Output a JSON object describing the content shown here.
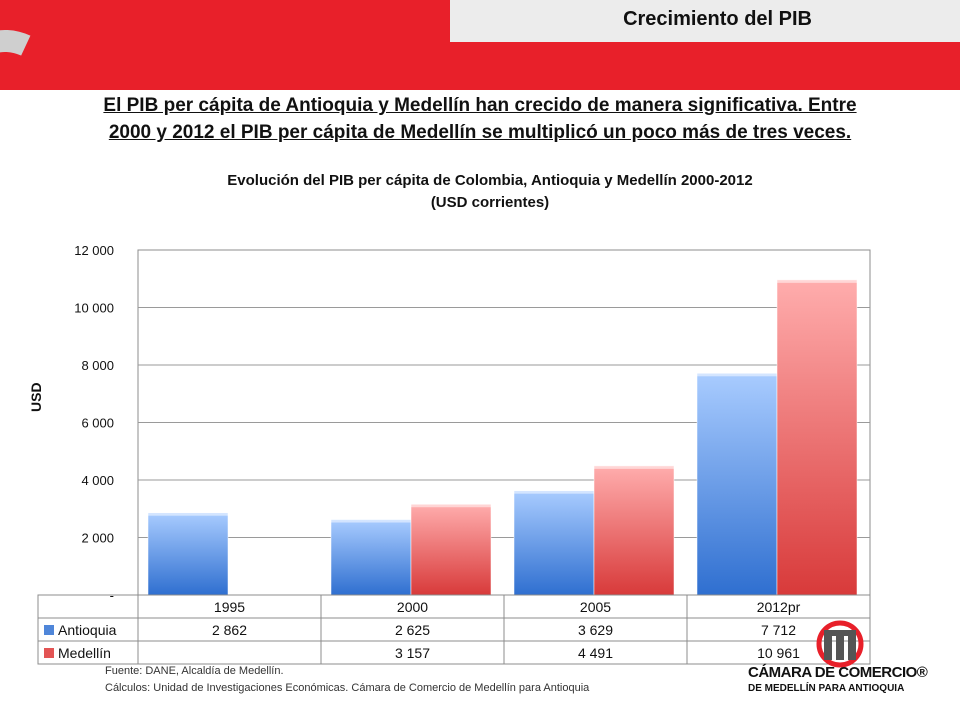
{
  "slide": {
    "title": "Crecimiento del PIB",
    "headline_line1": "El PIB per cápita de Antioquia y Medellín han crecido de manera significativa. Entre",
    "headline_line2": "2000 y 2012 el PIB per cápita de Medellín se multiplicó un poco más de tres veces.",
    "source_line1": "Fuente: DANE, Alcaldía de Medellín.",
    "source_line2": "Cálculos: Unidad de Investigaciones Económicas. Cámara de Comercio de Medellín para Antioquia",
    "logo_line1": "CÁMARA DE COMERCIO®",
    "logo_line2": "DE MEDELLÍN PARA ANTIOQUIA"
  },
  "colors": {
    "brand_red": "#e8202a",
    "antioquia": "#4f86d9",
    "medellin": "#e35454"
  },
  "chart_data": {
    "type": "bar",
    "title_line1": "Evolución del PIB  per cápita de Colombia, Antioquia y Medellín 2000-2012",
    "title_line2": "(USD corrientes)",
    "ylabel": "USD",
    "ylim": [
      0,
      12000
    ],
    "yticks": [
      0,
      2000,
      4000,
      6000,
      8000,
      10000,
      12000
    ],
    "ytick_labels": [
      "-",
      "2 000",
      "4 000",
      "6 000",
      "8 000",
      "10 000",
      "12 000"
    ],
    "categories": [
      "1995",
      "2000",
      "2005",
      "2012pr"
    ],
    "series": [
      {
        "name": "Antioquia",
        "values": [
          2862,
          2625,
          3629,
          7712
        ],
        "labels": [
          "2 862",
          "2 625",
          "3 629",
          "7 712"
        ]
      },
      {
        "name": "Medellín",
        "values": [
          null,
          3157,
          4491,
          10961
        ],
        "labels": [
          "",
          "3 157",
          "4 491",
          "10 961"
        ]
      }
    ],
    "grid": true,
    "legend": "data-table"
  }
}
